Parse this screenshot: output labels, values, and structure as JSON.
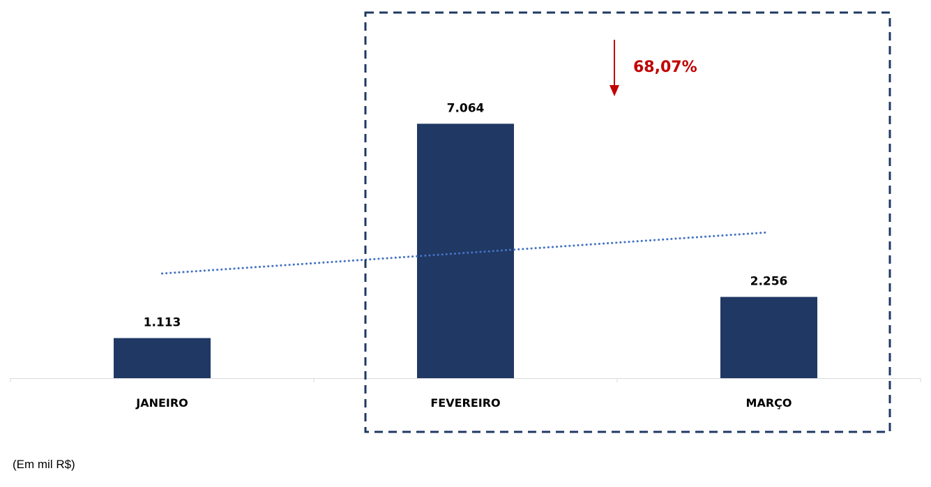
{
  "chart_data": {
    "type": "bar",
    "categories": [
      "JANEIRO",
      "FEVEREIRO",
      "MARÇO"
    ],
    "values": [
      1113,
      7064,
      2256
    ],
    "value_labels": [
      "1.113",
      "7.064",
      "2.256"
    ],
    "ylim": [
      0,
      10500
    ],
    "trendline": {
      "type": "linear",
      "style": "dotted",
      "color": "#4472C4"
    },
    "highlight": {
      "categories": [
        "FEVEREIRO",
        "MARÇO"
      ],
      "style": "dashed-box",
      "color": "#1F3864"
    },
    "annotation": {
      "text": "68,07%",
      "direction": "down",
      "color": "#C00000"
    },
    "bar_color": "#203864",
    "grid": false,
    "legend": "none"
  },
  "footnote": "(Em mil R$)"
}
